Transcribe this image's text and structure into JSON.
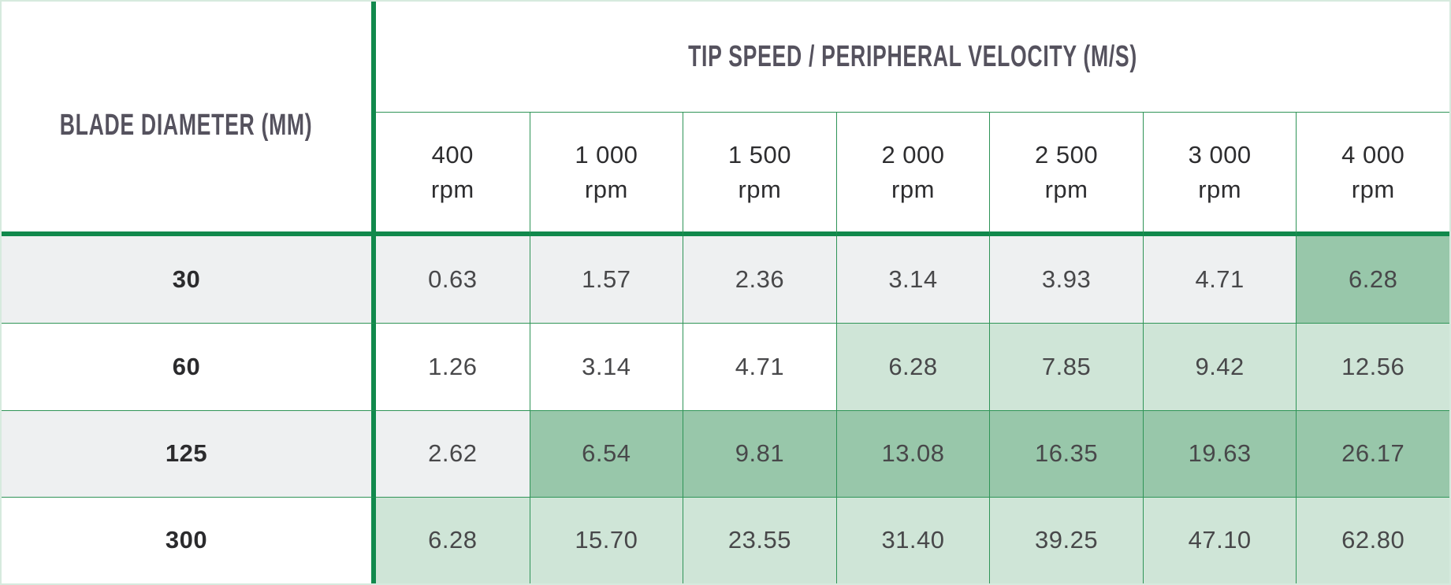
{
  "table": {
    "row_group_header": "BLADE DIAMETER (MM)",
    "col_group_header": "TIP SPEED / PERIPHERAL VELOCITY (M/S)",
    "rpm_unit": "rpm",
    "rpm_values": [
      "400",
      "1 000",
      "1 500",
      "2 000",
      "2 500",
      "3 000",
      "4 000"
    ],
    "rows": [
      {
        "label": "30",
        "values": [
          "0.63",
          "1.57",
          "2.36",
          "3.14",
          "3.93",
          "4.71",
          "6.28"
        ]
      },
      {
        "label": "60",
        "values": [
          "1.26",
          "3.14",
          "4.71",
          "6.28",
          "7.85",
          "9.42",
          "12.56"
        ]
      },
      {
        "label": "125",
        "values": [
          "2.62",
          "6.54",
          "9.81",
          "13.08",
          "16.35",
          "19.63",
          "26.17"
        ]
      },
      {
        "label": "300",
        "values": [
          "6.28",
          "15.70",
          "23.55",
          "31.40",
          "39.25",
          "47.10",
          "62.80"
        ]
      }
    ],
    "row_shades": [
      "gray",
      "white",
      "gray",
      "white"
    ],
    "cell_shades": [
      [
        "gray",
        "gray",
        "gray",
        "gray",
        "gray",
        "gray",
        "medium"
      ],
      [
        "white",
        "white",
        "white",
        "light",
        "light",
        "light",
        "light"
      ],
      [
        "gray",
        "medium",
        "medium",
        "medium",
        "medium",
        "medium",
        "medium"
      ],
      [
        "light",
        "light",
        "light",
        "light",
        "light",
        "light",
        "light"
      ]
    ],
    "colors": {
      "thick_grid_green": "#11894c",
      "thin_grid_green": "#2f9457",
      "outer_border_green": "#d6eade",
      "cell_gray": "#eef0f1",
      "cell_light_green": "#cfe5d7",
      "cell_medium_green": "#98c7aa",
      "header_text": "#55525e",
      "value_text": "#48484a"
    }
  },
  "chart_data": {
    "type": "table",
    "title": "TIP SPEED / PERIPHERAL VELOCITY (M/S)",
    "row_header": "BLADE DIAMETER (MM)",
    "columns_rpm": [
      400,
      1000,
      1500,
      2000,
      2500,
      3000,
      4000
    ],
    "rows": [
      {
        "blade_diameter_mm": 30,
        "tip_speed_m_s": [
          0.63,
          1.57,
          2.36,
          3.14,
          3.93,
          4.71,
          6.28
        ]
      },
      {
        "blade_diameter_mm": 60,
        "tip_speed_m_s": [
          1.26,
          3.14,
          4.71,
          6.28,
          7.85,
          9.42,
          12.56
        ]
      },
      {
        "blade_diameter_mm": 125,
        "tip_speed_m_s": [
          2.62,
          6.54,
          9.81,
          13.08,
          16.35,
          19.63,
          26.17
        ]
      },
      {
        "blade_diameter_mm": 300,
        "tip_speed_m_s": [
          6.28,
          15.7,
          23.55,
          31.4,
          39.25,
          47.1,
          62.8
        ]
      }
    ]
  }
}
